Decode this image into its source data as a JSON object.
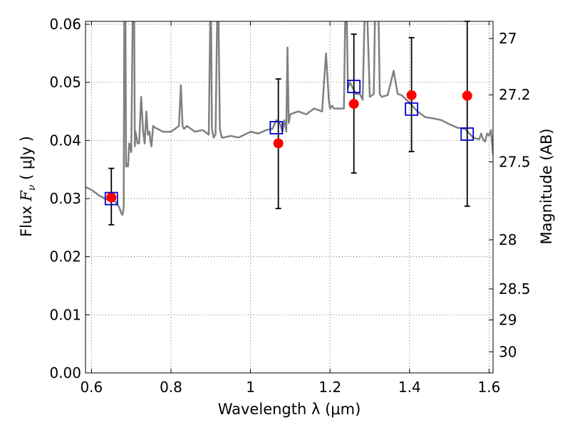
{
  "chart_data": {
    "type": "scatter",
    "xlabel": "Wavelength  λ (μm)",
    "ylabel_parts": [
      "Flux  ",
      "F",
      "ν",
      "  ( μJy )"
    ],
    "ylabel_right": "Magnitude (AB)",
    "xlim": [
      0.585,
      1.61
    ],
    "ylim": [
      0.0,
      0.0605
    ],
    "x_ticks": [
      0.6,
      0.8,
      1.0,
      1.2,
      1.4,
      1.6
    ],
    "x_tick_labels": [
      "0.6",
      "0.8",
      "1",
      "1.2",
      "1.4",
      "1.6"
    ],
    "y_ticks": [
      0.0,
      0.01,
      0.02,
      0.03,
      0.04,
      0.05,
      0.06
    ],
    "y_tick_labels": [
      "0.00",
      "0.01",
      "0.02",
      "0.03",
      "0.04",
      "0.05",
      "0.06"
    ],
    "right_ticks": [
      27,
      27.2,
      27.5,
      28,
      28.5,
      29,
      30
    ],
    "right_tick_labels": [
      "27",
      "27.2",
      "27.5",
      "28",
      "28.5",
      "29",
      "30"
    ],
    "grid": true,
    "colors": {
      "spectrum": "#808080",
      "observed": "#ff0000",
      "model": "#0000cc",
      "errorbar": "#000000",
      "grid": "#555555"
    },
    "series": [
      {
        "kind": "observed-points",
        "x": [
          0.65,
          1.07,
          1.26,
          1.405,
          1.545
        ],
        "y": [
          0.0302,
          0.0395,
          0.0463,
          0.0478,
          0.0477
        ],
        "yerr_low": [
          0.0255,
          0.0283,
          0.0344,
          0.0381,
          0.0287
        ],
        "yerr_high": [
          0.0352,
          0.0506,
          0.0583,
          0.0577,
          0.0605
        ]
      },
      {
        "kind": "model-squares",
        "x": [
          0.65,
          1.065,
          1.26,
          1.405,
          1.545
        ],
        "y": [
          0.03,
          0.0422,
          0.0493,
          0.0454,
          0.0411
        ]
      },
      {
        "kind": "spectrum",
        "x": [
          0.585,
          0.6,
          0.62,
          0.64,
          0.66,
          0.67,
          0.675,
          0.678,
          0.681,
          0.683,
          0.685,
          0.687,
          0.689,
          0.692,
          0.695,
          0.7,
          0.705,
          0.707,
          0.709,
          0.711,
          0.716,
          0.72,
          0.725,
          0.73,
          0.734,
          0.738,
          0.742,
          0.746,
          0.748,
          0.751,
          0.755,
          0.76,
          0.78,
          0.8,
          0.82,
          0.825,
          0.829,
          0.833,
          0.84,
          0.86,
          0.88,
          0.895,
          0.9,
          0.903,
          0.907,
          0.912,
          0.918,
          0.923,
          0.928,
          0.933,
          0.95,
          0.97,
          1.0,
          1.02,
          1.04,
          1.055,
          1.065,
          1.075,
          1.08,
          1.085,
          1.09,
          1.093,
          1.096,
          1.1,
          1.12,
          1.14,
          1.16,
          1.18,
          1.19,
          1.197,
          1.2,
          1.205,
          1.21,
          1.215,
          1.22,
          1.235,
          1.24,
          1.245,
          1.25,
          1.265,
          1.275,
          1.282,
          1.29,
          1.3,
          1.31,
          1.315,
          1.32,
          1.325,
          1.33,
          1.345,
          1.36,
          1.37,
          1.38,
          1.4,
          1.42,
          1.44,
          1.46,
          1.48,
          1.5,
          1.52,
          1.54,
          1.56,
          1.575,
          1.58,
          1.585,
          1.59,
          1.595,
          1.6,
          1.605,
          1.61
        ],
        "y": [
          0.032,
          0.0315,
          0.0305,
          0.0298,
          0.0295,
          0.0285,
          0.0275,
          0.0272,
          0.0285,
          0.07,
          0.07,
          0.0355,
          0.036,
          0.0355,
          0.0395,
          0.038,
          0.07,
          0.07,
          0.039,
          0.0415,
          0.0395,
          0.0395,
          0.0475,
          0.0415,
          0.0395,
          0.045,
          0.041,
          0.0415,
          0.04,
          0.039,
          0.0425,
          0.0422,
          0.0415,
          0.0415,
          0.0425,
          0.0495,
          0.0425,
          0.042,
          0.0425,
          0.0415,
          0.0418,
          0.041,
          0.068,
          0.042,
          0.0405,
          0.041,
          0.07,
          0.042,
          0.0405,
          0.0405,
          0.0408,
          0.0405,
          0.0415,
          0.0412,
          0.0418,
          0.042,
          0.0435,
          0.0428,
          0.0415,
          0.0435,
          0.0415,
          0.056,
          0.043,
          0.0445,
          0.045,
          0.0445,
          0.0455,
          0.045,
          0.055,
          0.047,
          0.0455,
          0.046,
          0.0455,
          0.0455,
          0.0455,
          0.0455,
          0.07,
          0.049,
          0.05,
          0.048,
          0.048,
          0.047,
          0.07,
          0.0475,
          0.048,
          0.07,
          0.07,
          0.048,
          0.0475,
          0.0478,
          0.052,
          0.048,
          0.0478,
          0.0465,
          0.045,
          0.044,
          0.0438,
          0.0435,
          0.0428,
          0.0422,
          0.042,
          0.0405,
          0.0402,
          0.0412,
          0.0402,
          0.0398,
          0.0412,
          0.0408,
          0.0418,
          0.0375
        ]
      }
    ]
  }
}
